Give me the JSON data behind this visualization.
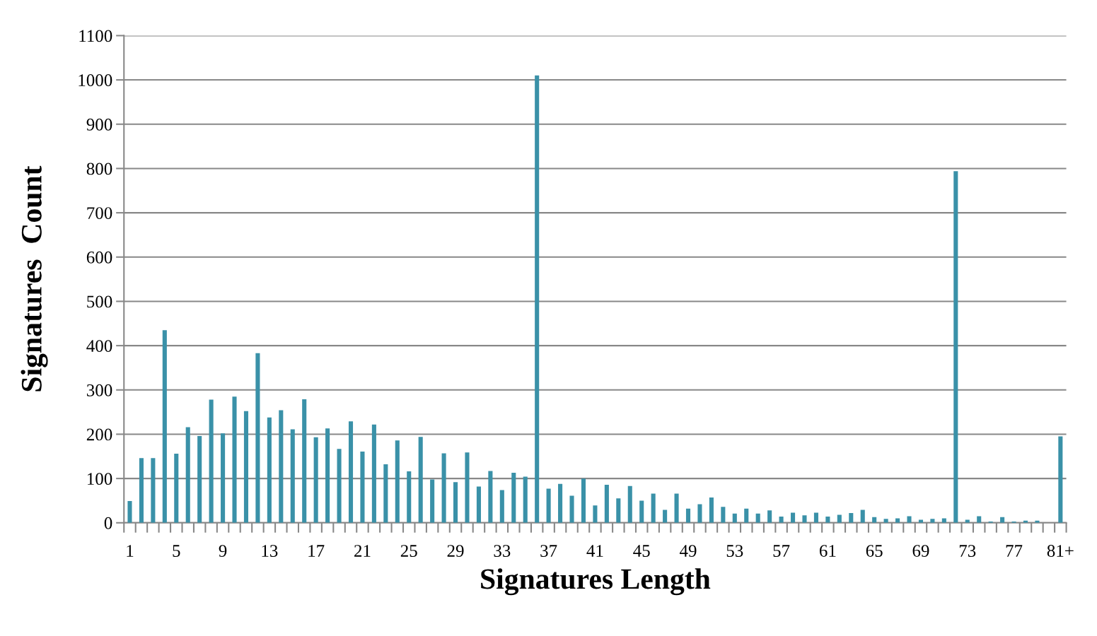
{
  "chart_data": {
    "type": "bar",
    "xlabel": "Signatures Length",
    "ylabel": "Signatures  Count",
    "categories": [
      "1",
      null,
      null,
      null,
      "5",
      null,
      null,
      null,
      "9",
      null,
      null,
      null,
      "13",
      null,
      null,
      null,
      "17",
      null,
      null,
      null,
      "21",
      null,
      null,
      null,
      "25",
      null,
      null,
      null,
      "29",
      null,
      null,
      null,
      "33",
      null,
      null,
      null,
      "37",
      null,
      null,
      null,
      "41",
      null,
      null,
      null,
      "45",
      null,
      null,
      null,
      "49",
      null,
      null,
      null,
      "53",
      null,
      null,
      null,
      "57",
      null,
      null,
      null,
      "61",
      null,
      null,
      null,
      "65",
      null,
      null,
      null,
      "69",
      null,
      null,
      null,
      "73",
      null,
      null,
      null,
      "77",
      null,
      null,
      null,
      "81+"
    ],
    "values": [
      49,
      146,
      146,
      435,
      156,
      216,
      196,
      278,
      202,
      285,
      252,
      383,
      238,
      254,
      211,
      279,
      193,
      213,
      167,
      229,
      161,
      222,
      132,
      186,
      116,
      194,
      98,
      157,
      92,
      159,
      82,
      117,
      74,
      113,
      104,
      1010,
      77,
      88,
      61,
      100,
      39,
      86,
      55,
      83,
      50,
      66,
      29,
      66,
      32,
      42,
      57,
      36,
      21,
      32,
      21,
      28,
      14,
      23,
      17,
      23,
      14,
      18,
      22,
      29,
      13,
      9,
      10,
      15,
      7,
      9,
      10,
      794,
      7,
      15,
      3,
      13,
      3,
      5,
      5,
      0,
      195
    ],
    "color": "#3a91a8",
    "ylim": [
      0,
      1100
    ],
    "yticks": [
      0,
      100,
      200,
      300,
      400,
      500,
      600,
      700,
      800,
      900,
      1000,
      1100
    ],
    "grid": "y"
  }
}
